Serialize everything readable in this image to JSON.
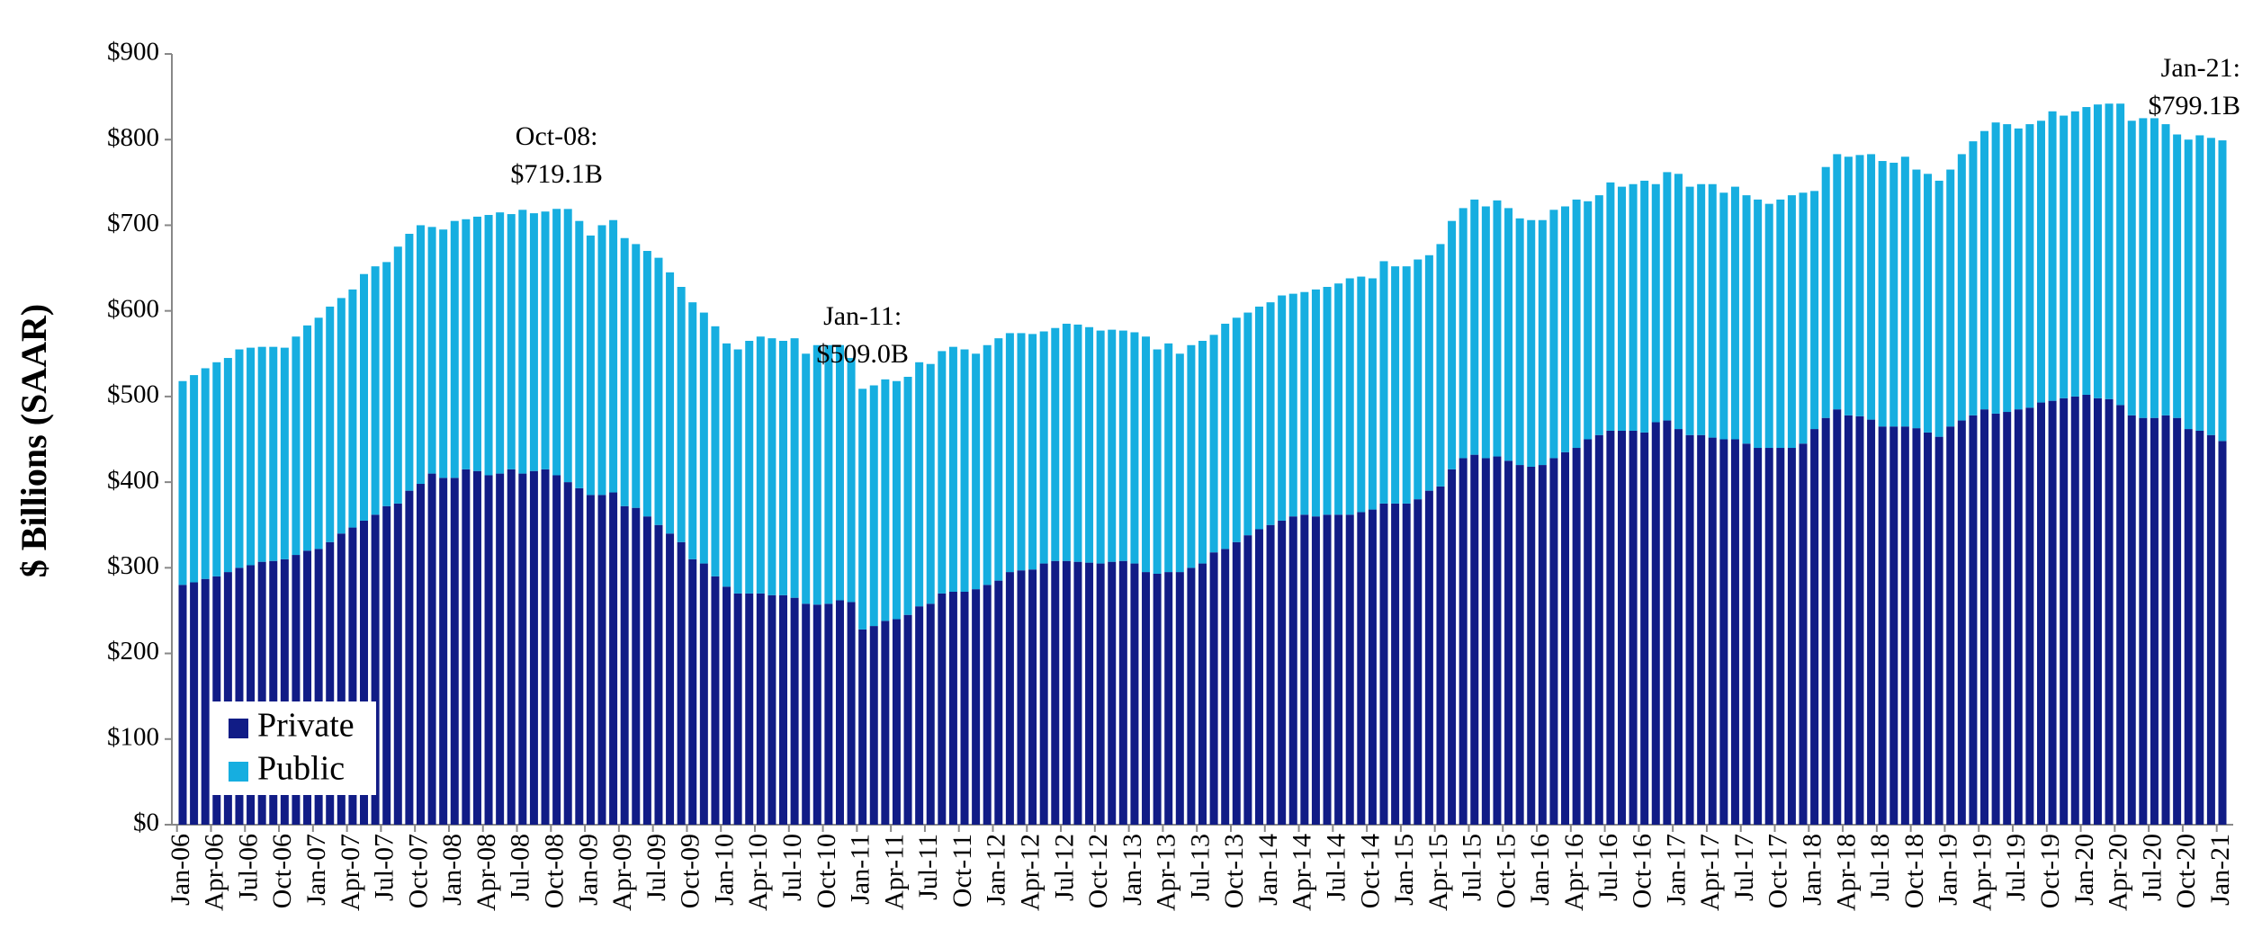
{
  "chart_data": {
    "type": "stacked-bar",
    "y_label": "$ Billions (SAAR)",
    "categories": [
      "Jan-06",
      null,
      null,
      "Apr-06",
      null,
      null,
      "Jul-06",
      null,
      null,
      "Oct-06",
      null,
      null,
      "Jan-07",
      null,
      null,
      "Apr-07",
      null,
      null,
      "Jul-07",
      null,
      null,
      "Oct-07",
      null,
      null,
      "Jan-08",
      null,
      null,
      "Apr-08",
      null,
      null,
      "Jul-08",
      null,
      null,
      "Oct-08",
      null,
      null,
      "Jan-09",
      null,
      null,
      "Apr-09",
      null,
      null,
      "Jul-09",
      null,
      null,
      "Oct-09",
      null,
      null,
      "Jan-10",
      null,
      null,
      "Apr-10",
      null,
      null,
      "Jul-10",
      null,
      null,
      "Oct-10",
      null,
      null,
      "Jan-11",
      null,
      null,
      "Apr-11",
      null,
      null,
      "Jul-11",
      null,
      null,
      "Oct-11",
      null,
      null,
      "Jan-12",
      null,
      null,
      "Apr-12",
      null,
      null,
      "Jul-12",
      null,
      null,
      "Oct-12",
      null,
      null,
      "Jan-13",
      null,
      null,
      "Apr-13",
      null,
      null,
      "Jul-13",
      null,
      null,
      "Oct-13",
      null,
      null,
      "Jan-14",
      null,
      null,
      "Apr-14",
      null,
      null,
      "Jul-14",
      null,
      null,
      "Oct-14",
      null,
      null,
      "Jan-15",
      null,
      null,
      "Apr-15",
      null,
      null,
      "Jul-15",
      null,
      null,
      "Oct-15",
      null,
      null,
      "Jan-16",
      null,
      null,
      "Apr-16",
      null,
      null,
      "Jul-16",
      null,
      null,
      "Oct-16",
      null,
      null,
      "Jan-17",
      null,
      null,
      "Apr-17",
      null,
      null,
      "Jul-17",
      null,
      null,
      "Oct-17",
      null,
      null,
      "Jan-18",
      null,
      null,
      "Apr-18",
      null,
      null,
      "Jul-18",
      null,
      null,
      "Oct-18",
      null,
      null,
      "Jan-19",
      null,
      null,
      "Apr-19",
      null,
      null,
      "Jul-19",
      null,
      null,
      "Oct-19",
      null,
      null,
      "Jan-20",
      null,
      null,
      "Apr-20",
      null,
      null,
      "Jul-20",
      null,
      null,
      "Oct-20",
      null,
      null,
      "Jan-21"
    ],
    "series": [
      {
        "name": "Private",
        "color": "#111c86",
        "values": [
          280,
          283,
          287,
          290,
          295,
          300,
          303,
          307,
          308,
          310,
          315,
          320,
          322,
          330,
          340,
          347,
          355,
          362,
          372,
          375,
          390,
          398,
          410,
          405,
          405,
          415,
          413,
          408,
          410,
          415,
          410,
          413,
          415,
          408,
          400,
          393,
          385,
          385,
          388,
          372,
          370,
          360,
          350,
          340,
          330,
          310,
          305,
          290,
          278,
          270,
          270,
          270,
          268,
          268,
          265,
          258,
          257,
          258,
          262,
          260,
          228,
          232,
          238,
          240,
          245,
          255,
          258,
          270,
          272,
          272,
          275,
          280,
          285,
          295,
          297,
          298,
          305,
          308,
          308,
          307,
          306,
          305,
          307,
          308,
          305,
          295,
          293,
          295,
          295,
          300,
          305,
          318,
          322,
          330,
          338,
          345,
          350,
          355,
          360,
          362,
          360,
          362,
          362,
          362,
          365,
          368,
          375,
          375,
          375,
          380,
          390,
          395,
          415,
          428,
          432,
          428,
          430,
          425,
          420,
          418,
          420,
          428,
          435,
          440,
          450,
          455,
          460,
          460,
          460,
          458,
          470,
          472,
          462,
          455,
          455,
          452,
          450,
          450,
          445,
          440,
          440,
          440,
          440,
          445,
          462,
          475,
          485,
          478,
          477,
          473,
          465,
          465,
          465,
          463,
          458,
          453,
          465,
          472,
          478,
          485,
          480,
          482,
          485,
          487,
          493,
          495,
          498,
          500,
          502,
          498,
          497,
          490,
          478,
          475,
          475,
          478,
          475,
          462,
          460,
          455,
          448
        ]
      },
      {
        "name": "Public",
        "color": "#16aee0",
        "values": [
          238,
          242,
          246,
          250,
          250,
          255,
          254,
          251,
          250,
          247,
          255,
          263,
          270,
          275,
          275,
          278,
          288,
          290,
          285,
          300,
          300,
          302,
          288,
          290,
          300,
          292,
          297,
          304,
          305,
          298,
          308,
          301,
          301,
          311.1,
          319,
          312,
          303,
          315,
          318,
          313,
          308,
          310,
          312,
          305,
          298,
          300,
          293,
          292,
          284,
          285,
          295,
          300,
          300,
          297,
          303,
          292,
          303,
          302,
          298,
          285,
          281,
          281,
          282,
          278,
          278,
          285,
          280,
          283,
          286,
          283,
          275,
          280,
          283,
          279,
          277,
          275,
          271,
          272,
          277,
          277,
          275,
          272,
          271,
          269,
          270,
          275,
          262,
          267,
          255,
          260,
          260,
          254,
          263,
          262,
          260,
          260,
          260,
          263,
          260,
          260,
          265,
          266,
          270,
          276,
          275,
          270,
          283,
          277,
          277,
          280,
          275,
          283,
          290,
          292,
          298,
          294,
          299,
          295,
          288,
          288,
          286,
          290,
          287,
          290,
          278,
          280,
          290,
          285,
          288,
          294,
          278,
          290,
          298,
          290,
          293,
          296,
          288,
          295,
          290,
          290,
          285,
          290,
          295,
          293,
          278,
          293,
          298,
          302,
          305,
          310,
          310,
          308,
          315,
          302,
          302,
          299,
          300,
          311,
          320,
          325,
          340,
          336,
          328,
          331,
          329,
          338,
          330,
          333,
          336,
          343,
          345,
          352,
          344,
          350,
          350,
          340,
          331,
          338,
          345,
          347,
          351.1
        ]
      }
    ],
    "ylim": [
      0,
      900
    ],
    "yticks": [
      {
        "value": 0,
        "label": "$0"
      },
      {
        "value": 100,
        "label": "$100"
      },
      {
        "value": 200,
        "label": "$200"
      },
      {
        "value": 300,
        "label": "$300"
      },
      {
        "value": 400,
        "label": "$400"
      },
      {
        "value": 500,
        "label": "$500"
      },
      {
        "value": 600,
        "label": "$600"
      },
      {
        "value": 700,
        "label": "$700"
      },
      {
        "value": 800,
        "label": "$800"
      },
      {
        "value": 900,
        "label": "$900"
      }
    ],
    "annotations": [
      {
        "title": "Oct-08:",
        "text": "$719.1B"
      },
      {
        "title": "Jan-11:",
        "text": "$509.0B"
      },
      {
        "title": "Jan-21:",
        "text": "$799.1B"
      }
    ],
    "legend": "lower left",
    "grid": false
  }
}
